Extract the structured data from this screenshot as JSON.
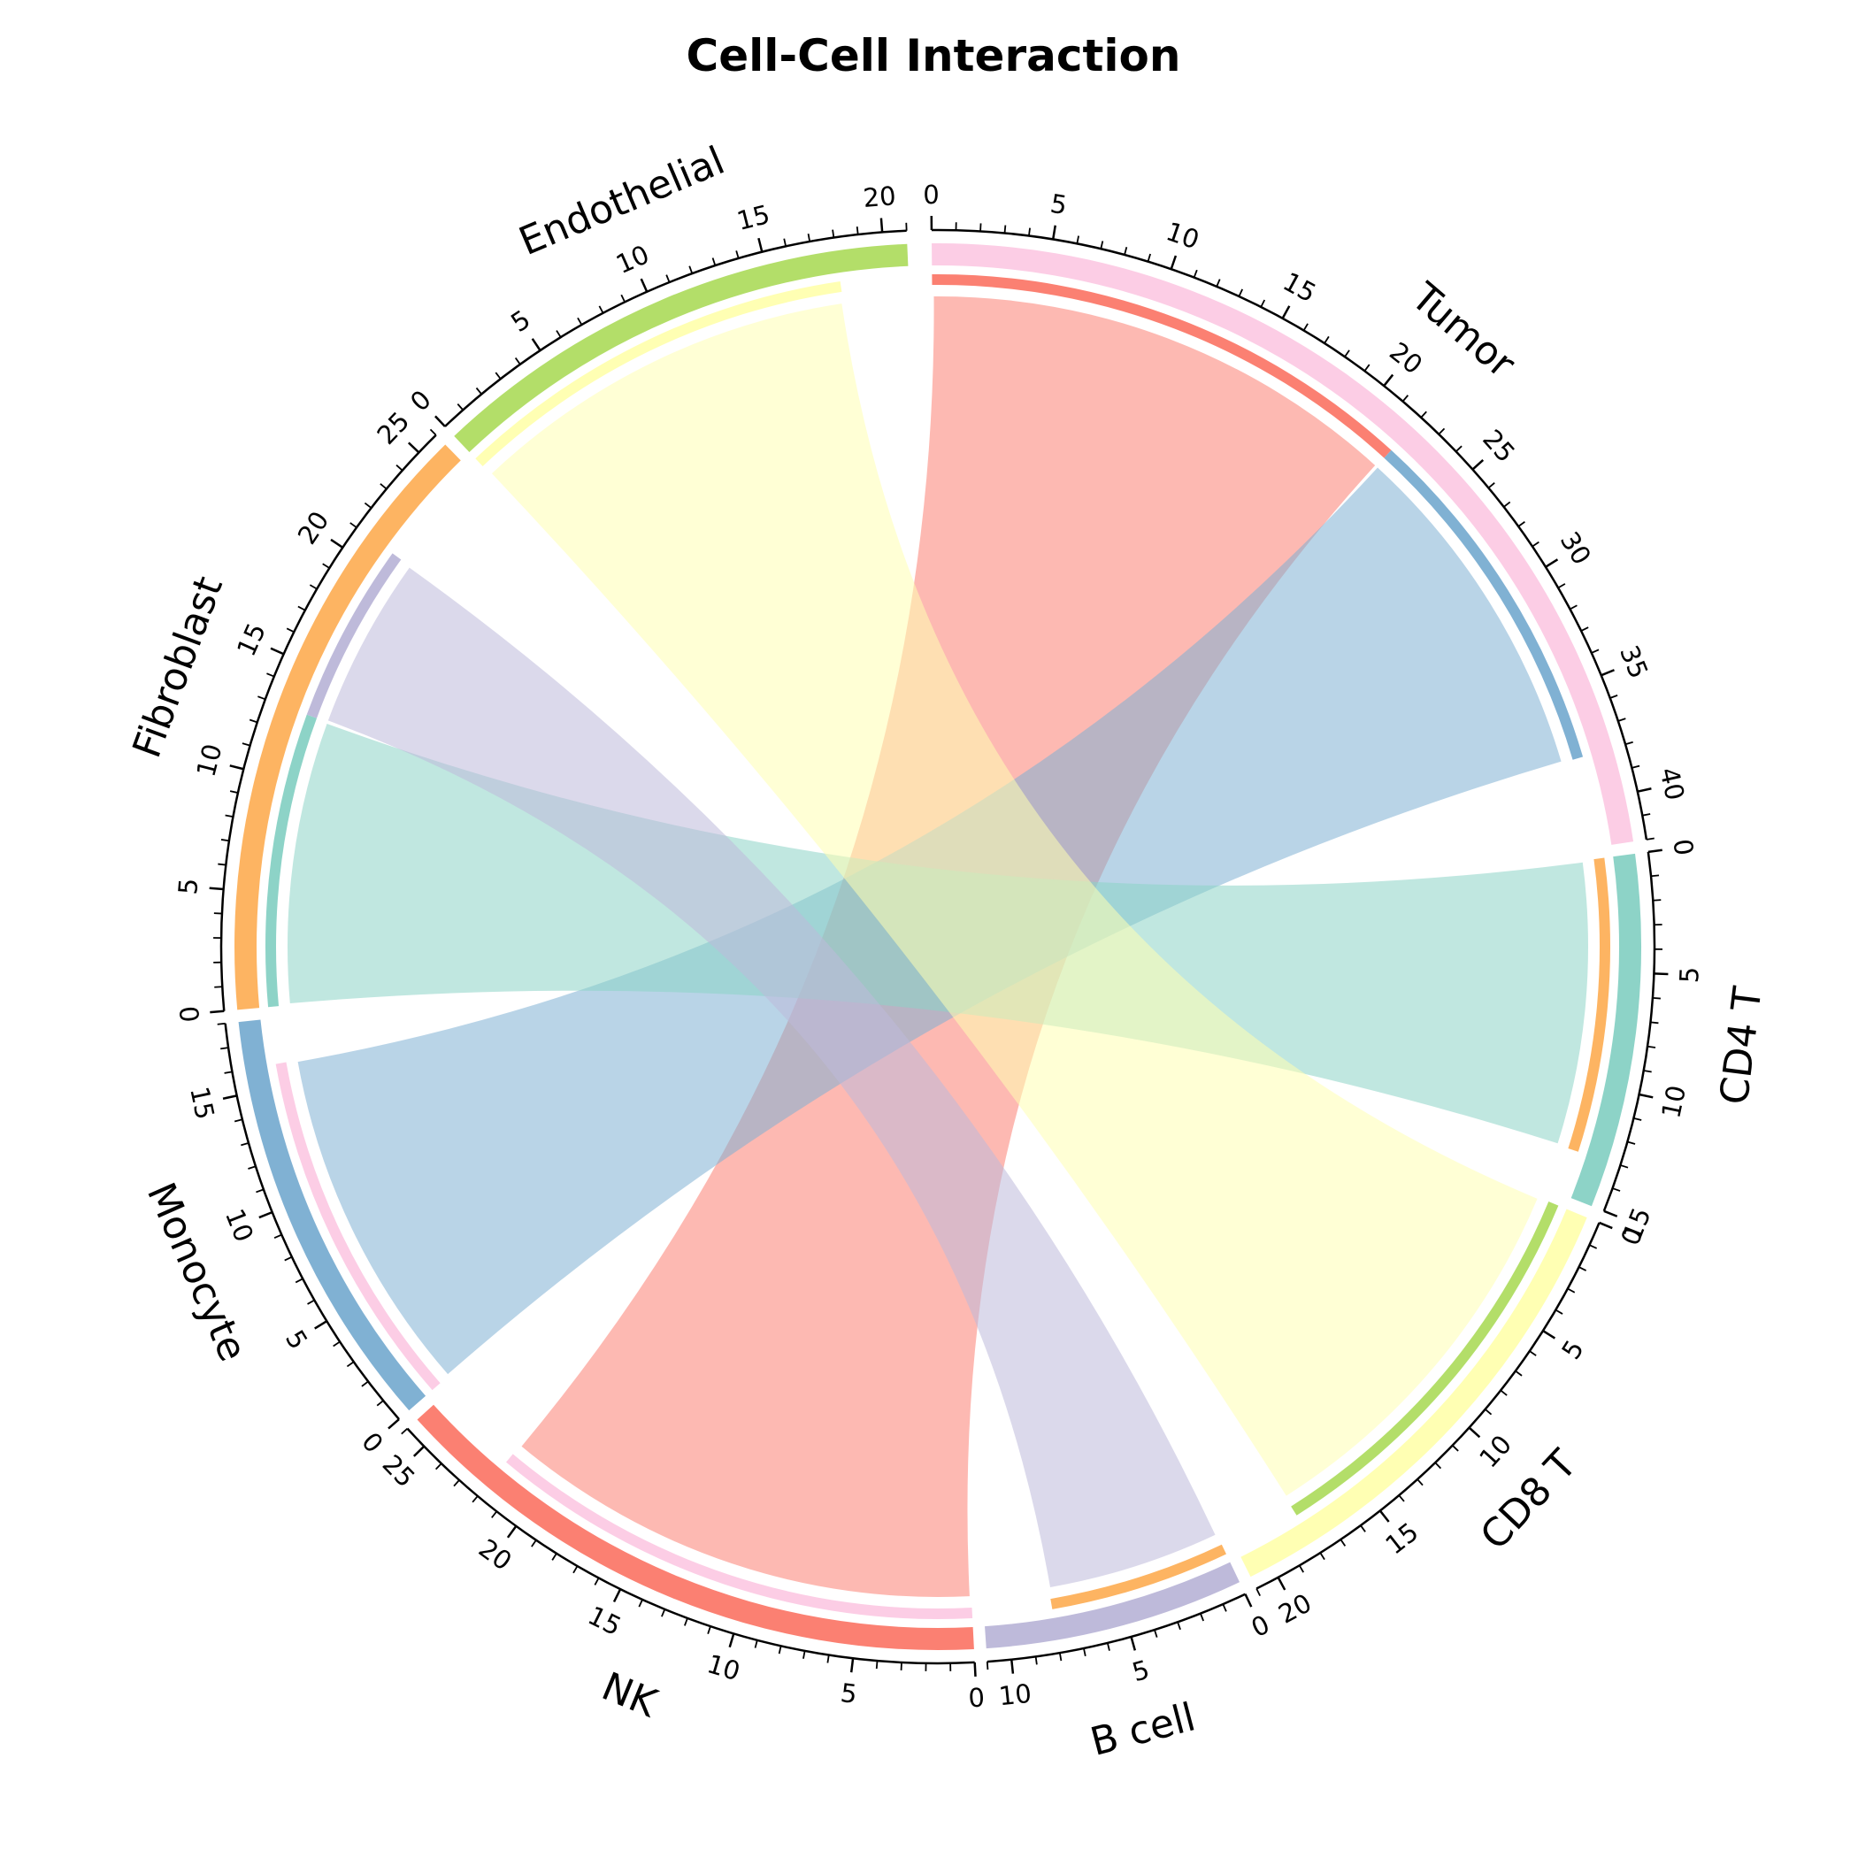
{
  "chart_data": {
    "type": "chord",
    "title": "Cell-Cell Interaction",
    "sectors": [
      {
        "name": "Tumor",
        "size": 42,
        "color": "#fccde5"
      },
      {
        "name": "CD4 T",
        "size": 15,
        "color": "#8dd3c7"
      },
      {
        "name": "CD8 T",
        "size": 21,
        "color": "#ffffb3"
      },
      {
        "name": "B cell",
        "size": 11,
        "color": "#bebada"
      },
      {
        "name": "NK",
        "size": 26,
        "color": "#fb8072"
      },
      {
        "name": "Monocyte",
        "size": 18,
        "color": "#80b1d3"
      },
      {
        "name": "Fibroblast",
        "size": 26,
        "color": "#fdb462"
      },
      {
        "name": "Endothelial",
        "size": 21,
        "color": "#b3de69"
      }
    ],
    "links": [
      {
        "source": "Tumor",
        "target": "NK",
        "value": 22,
        "color": "#fb8072"
      },
      {
        "source": "Tumor",
        "target": "Monocyte",
        "value": 16,
        "color": "#80b1d3"
      },
      {
        "source": "Fibroblast",
        "target": "CD4 T",
        "value": 13,
        "color": "#8dd3c7"
      },
      {
        "source": "Fibroblast",
        "target": "B cell",
        "value": 8,
        "color": "#bebada"
      },
      {
        "source": "Endothelial",
        "target": "CD8 T",
        "value": 18,
        "color": "#ffffb3"
      }
    ],
    "tick_step": 5,
    "minor_tick_step": 1
  }
}
